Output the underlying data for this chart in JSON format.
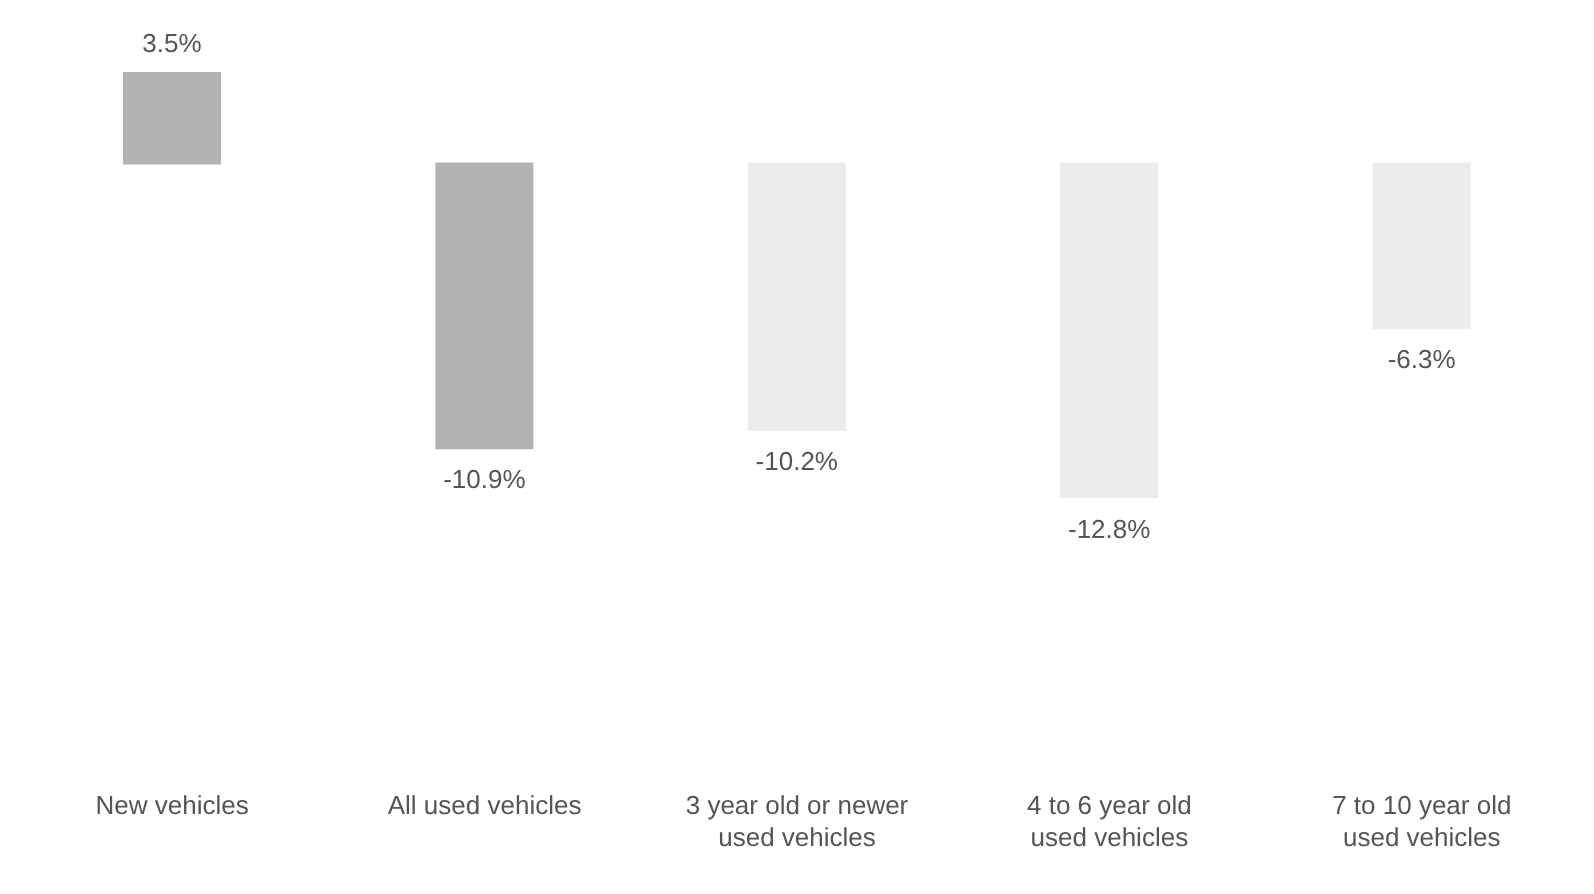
{
  "chart_data": {
    "type": "bar",
    "categories": [
      "New vehicles",
      "All used vehicles",
      "3 year old or newer used vehicles",
      "4 to 6 year old used vehicles",
      "7 to 10 year old used vehicles"
    ],
    "values": [
      3.5,
      -10.9,
      -10.2,
      -12.8,
      -6.3
    ],
    "colors": [
      "#b3b3b3",
      "#b3b3b3",
      "#ececec",
      "#ececec",
      "#ececec"
    ],
    "value_labels": [
      "3.5%",
      "-10.9%",
      "-10.2%",
      "-12.8%",
      "-6.3%"
    ],
    "grid": false,
    "legend": false
  }
}
